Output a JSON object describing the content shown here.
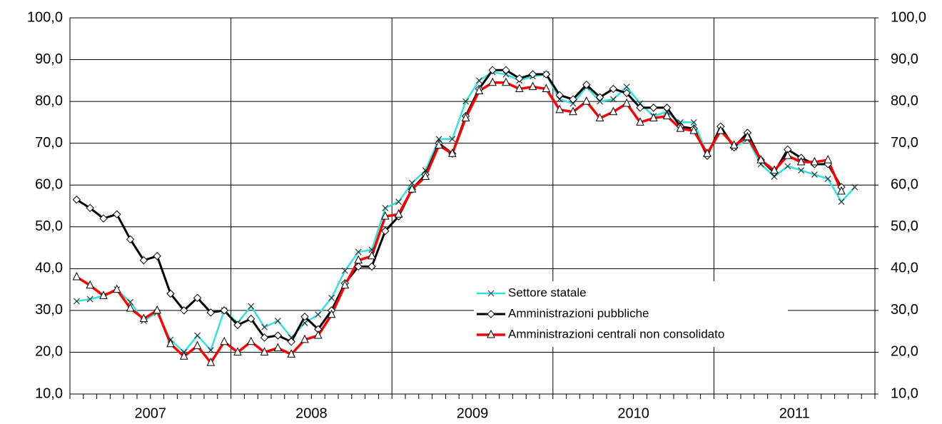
{
  "chart_data": {
    "type": "line",
    "categories": [
      null,
      null,
      null,
      null,
      null,
      null,
      null,
      null,
      null,
      null,
      null,
      null,
      null,
      null,
      null,
      null,
      null,
      null,
      null,
      null,
      null,
      null,
      null,
      null,
      null,
      null,
      null,
      null,
      null,
      null,
      null,
      null,
      null,
      null,
      null,
      null,
      null,
      null,
      null,
      null,
      null,
      null,
      null,
      null,
      null,
      null,
      null,
      null,
      null,
      null,
      null,
      null,
      null,
      null,
      null,
      null,
      null,
      null,
      null,
      null
    ],
    "year_labels": [
      "2007",
      "2008",
      "2009",
      "2010",
      "2011"
    ],
    "ylim": [
      10,
      100
    ],
    "yticks": [
      {
        "value": 10,
        "label": "10,0"
      },
      {
        "value": 20,
        "label": "20,0"
      },
      {
        "value": 30,
        "label": "30,0"
      },
      {
        "value": 40,
        "label": "40,0"
      },
      {
        "value": 50,
        "label": "50,0"
      },
      {
        "value": 60,
        "label": "60,0"
      },
      {
        "value": 70,
        "label": "70,0"
      },
      {
        "value": 80,
        "label": "80,0"
      },
      {
        "value": 90,
        "label": "90,0"
      },
      {
        "value": 100,
        "label": "100,0"
      }
    ],
    "y2lim": [
      10,
      100
    ],
    "y2ticks": [
      {
        "value": 10,
        "label": "10,0"
      },
      {
        "value": 20,
        "label": "20,0"
      },
      {
        "value": 30,
        "label": "30,0"
      },
      {
        "value": 40,
        "label": "40,0"
      },
      {
        "value": 50,
        "label": "50,0"
      },
      {
        "value": 60,
        "label": "60,0"
      },
      {
        "value": 70,
        "label": "70,0"
      },
      {
        "value": 80,
        "label": "80,0"
      },
      {
        "value": 90,
        "label": "90,0"
      },
      {
        "value": 100,
        "label": "100,0"
      }
    ],
    "grid": true,
    "series": [
      {
        "name": "Settore statale",
        "color": "#33e0e0",
        "marker": "x",
        "values": [
          32.2,
          32.7,
          33.5,
          35.0,
          32.0,
          27.5,
          29.5,
          23.0,
          20.0,
          24.0,
          20.5,
          30.0,
          27.0,
          31.0,
          26.0,
          27.5,
          23.5,
          27.0,
          29.0,
          33.0,
          39.5,
          44.0,
          44.5,
          54.5,
          56.0,
          60.5,
          63.5,
          71.0,
          71.0,
          80.0,
          85.0,
          87.0,
          86.5,
          85.0,
          86.0,
          86.5,
          80.5,
          79.5,
          83.5,
          80.0,
          80.5,
          83.5,
          79.5,
          76.5,
          77.5,
          75.0,
          75.0,
          67.5,
          73.5,
          69.0,
          71.0,
          65.0,
          62.0,
          64.5,
          63.5,
          62.5,
          61.5,
          56.0,
          59.5,
          null
        ]
      },
      {
        "name": "Amministrazioni pubbliche",
        "color": "#000000",
        "marker": "diamond",
        "values": [
          56.5,
          54.5,
          52.0,
          53.0,
          47.0,
          42.0,
          43.0,
          34.0,
          30.0,
          33.0,
          29.5,
          30.0,
          26.5,
          28.0,
          23.5,
          24.0,
          22.5,
          28.5,
          25.5,
          30.0,
          36.5,
          40.5,
          40.5,
          49.0,
          52.5,
          59.0,
          62.5,
          70.0,
          67.5,
          76.5,
          83.0,
          87.5,
          87.5,
          85.5,
          86.5,
          86.5,
          81.5,
          80.5,
          84.0,
          81.0,
          83.0,
          82.0,
          78.5,
          78.5,
          78.5,
          74.0,
          73.5,
          67.0,
          74.0,
          69.0,
          72.5,
          66.0,
          63.0,
          68.5,
          66.5,
          65.0,
          65.0,
          59.5,
          null,
          null
        ]
      },
      {
        "name": "Amministrazioni centrali non consolidato",
        "color": "#ff0000",
        "marker": "triangle",
        "values": [
          38.0,
          36.0,
          33.5,
          35.0,
          30.5,
          28.0,
          30.0,
          22.0,
          19.0,
          21.5,
          17.5,
          22.5,
          20.0,
          22.5,
          20.0,
          21.0,
          19.5,
          23.0,
          24.0,
          29.0,
          36.0,
          42.0,
          43.0,
          52.5,
          53.0,
          59.0,
          62.0,
          69.5,
          67.5,
          76.0,
          82.5,
          84.5,
          84.5,
          83.0,
          83.5,
          83.0,
          78.0,
          77.5,
          80.0,
          76.0,
          77.5,
          79.5,
          75.0,
          76.0,
          76.5,
          73.5,
          73.0,
          67.5,
          73.0,
          69.5,
          71.5,
          66.0,
          63.5,
          67.0,
          65.5,
          65.5,
          66.0,
          58.5,
          null,
          null
        ]
      }
    ]
  }
}
